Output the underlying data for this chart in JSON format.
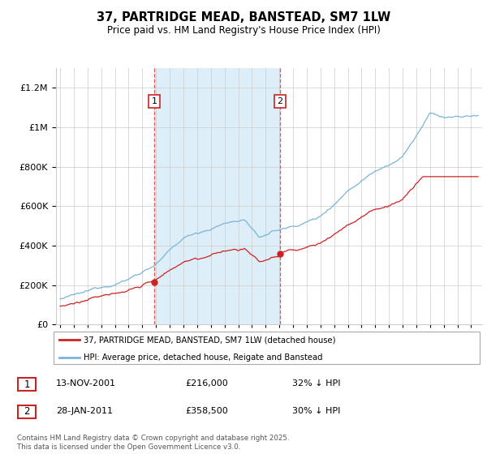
{
  "title": "37, PARTRIDGE MEAD, BANSTEAD, SM7 1LW",
  "subtitle": "Price paid vs. HM Land Registry's House Price Index (HPI)",
  "legend_line1": "37, PARTRIDGE MEAD, BANSTEAD, SM7 1LW (detached house)",
  "legend_line2": "HPI: Average price, detached house, Reigate and Banstead",
  "purchase1_date": "13-NOV-2001",
  "purchase1_price": "£216,000",
  "purchase1_hpi": "32% ↓ HPI",
  "purchase2_date": "28-JAN-2011",
  "purchase2_price": "£358,500",
  "purchase2_hpi": "30% ↓ HPI",
  "footer": "Contains HM Land Registry data © Crown copyright and database right 2025.\nThis data is licensed under the Open Government Licence v3.0.",
  "hpi_color": "#7ab4d8",
  "price_color": "#cc2222",
  "vline_color": "#dd4444",
  "bg_shade_color": "#ddeef8",
  "label_box_edge": "#cc2222",
  "ylim": [
    0,
    1300000
  ],
  "yticks": [
    0,
    200000,
    400000,
    600000,
    800000,
    1000000,
    1200000
  ],
  "xlim_start": 1994.7,
  "xlim_end": 2025.8
}
